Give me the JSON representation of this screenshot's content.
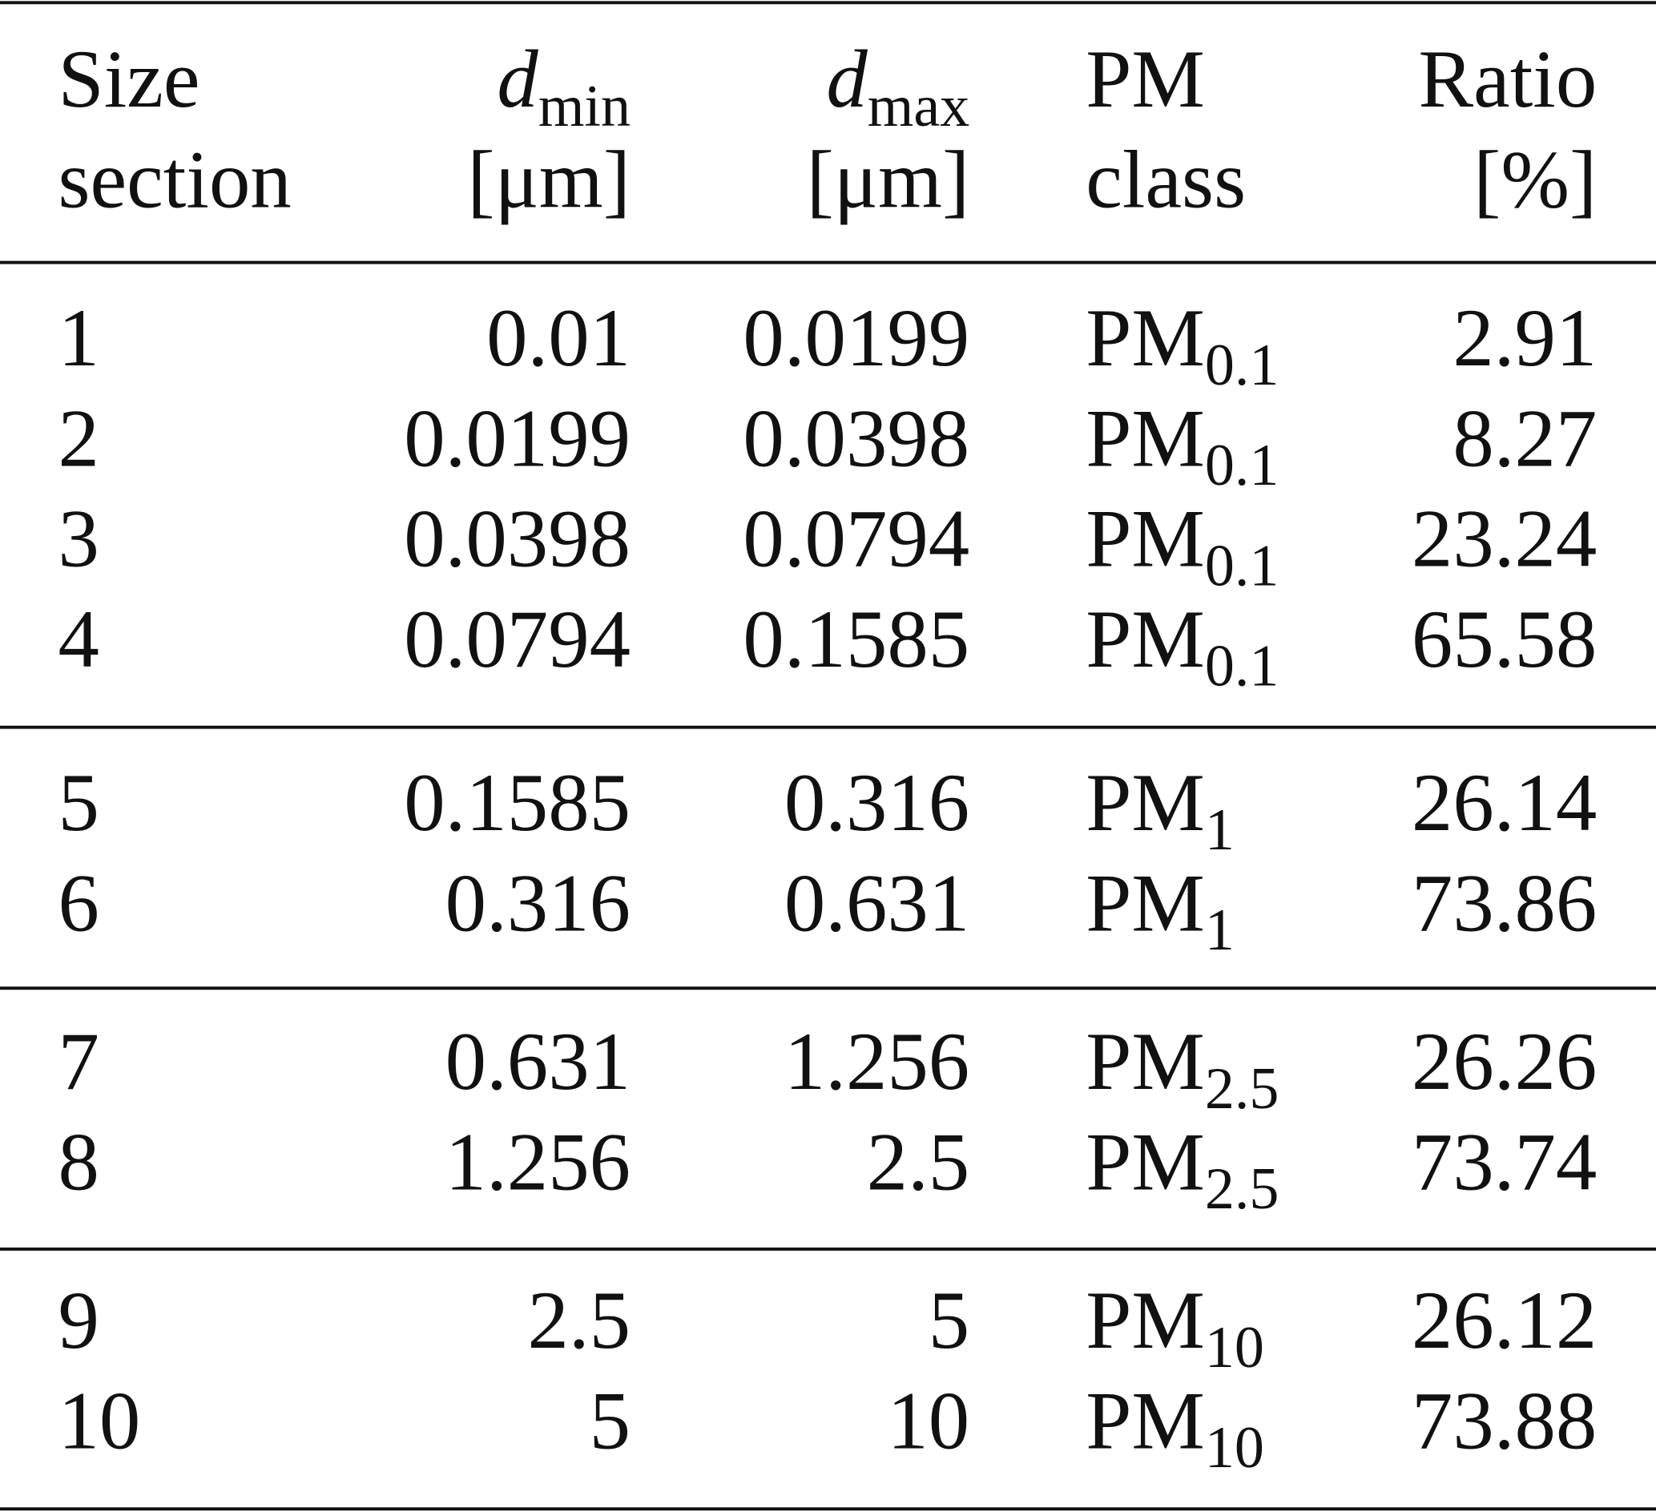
{
  "table": {
    "header": [
      {
        "lines": [
          "Size",
          "section"
        ]
      },
      {
        "symbol": "d",
        "subscript": "min",
        "unit": "[μm]"
      },
      {
        "symbol": "d",
        "subscript": "max",
        "unit": "[μm]"
      },
      {
        "lines": [
          "PM",
          "class"
        ]
      },
      {
        "lines": [
          "Ratio",
          "[%]"
        ]
      }
    ],
    "groups": [
      [
        [
          "1",
          "0.01",
          "0.0199",
          {
            "base": "PM",
            "sub": "0.1"
          },
          "2.91"
        ],
        [
          "2",
          "0.0199",
          "0.0398",
          {
            "base": "PM",
            "sub": "0.1"
          },
          "8.27"
        ],
        [
          "3",
          "0.0398",
          "0.0794",
          {
            "base": "PM",
            "sub": "0.1"
          },
          "23.24"
        ],
        [
          "4",
          "0.0794",
          "0.1585",
          {
            "base": "PM",
            "sub": "0.1"
          },
          "65.58"
        ]
      ],
      [
        [
          "5",
          "0.1585",
          "0.316",
          {
            "base": "PM",
            "sub": "1"
          },
          "26.14"
        ],
        [
          "6",
          "0.316",
          "0.631",
          {
            "base": "PM",
            "sub": "1"
          },
          "73.86"
        ]
      ],
      [
        [
          "7",
          "0.631",
          "1.256",
          {
            "base": "PM",
            "sub": "2.5"
          },
          "26.26"
        ],
        [
          "8",
          "1.256",
          "2.5",
          {
            "base": "PM",
            "sub": "2.5"
          },
          "73.74"
        ]
      ],
      [
        [
          "9",
          "2.5",
          "5",
          {
            "base": "PM",
            "sub": "10"
          },
          "26.12"
        ],
        [
          "10",
          "5",
          "10",
          {
            "base": "PM",
            "sub": "10"
          },
          "73.88"
        ]
      ]
    ]
  }
}
